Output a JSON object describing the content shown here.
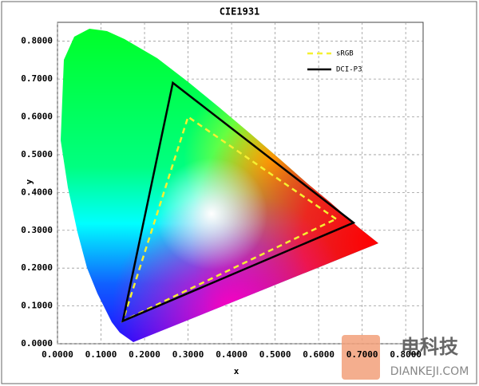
{
  "chart_data": {
    "type": "polygon",
    "title": "CIE1931",
    "x_label": "x",
    "y_label": "y",
    "xlim": [
      0,
      0.84
    ],
    "ylim": [
      0,
      0.85
    ],
    "xticks": [
      {
        "value": 0,
        "label": "0.0000"
      },
      {
        "value": 0.1,
        "label": "0.1000"
      },
      {
        "value": 0.2,
        "label": "0.2000"
      },
      {
        "value": 0.3,
        "label": "0.3000"
      },
      {
        "value": 0.4,
        "label": "0.4000"
      },
      {
        "value": 0.5,
        "label": "0.5000"
      },
      {
        "value": 0.6,
        "label": "0.6000"
      },
      {
        "value": 0.7,
        "label": "0.7000"
      },
      {
        "value": 0.8,
        "label": "0.8000"
      }
    ],
    "yticks": [
      {
        "value": 0,
        "label": "0.0000"
      },
      {
        "value": 0.1,
        "label": "0.1000"
      },
      {
        "value": 0.2,
        "label": "0.2000"
      },
      {
        "value": 0.3,
        "label": "0.3000"
      },
      {
        "value": 0.4,
        "label": "0.4000"
      },
      {
        "value": 0.5,
        "label": "0.5000"
      },
      {
        "value": 0.6,
        "label": "0.6000"
      },
      {
        "value": 0.7,
        "label": "0.7000"
      },
      {
        "value": 0.8,
        "label": "0.8000"
      }
    ],
    "grid": true,
    "legend": "upper right",
    "series": [
      {
        "name": "sRGB",
        "color": "#f5f032",
        "dashed": true,
        "x": [
          0.64,
          0.3,
          0.15
        ],
        "y": [
          0.33,
          0.6,
          0.06
        ]
      },
      {
        "name": "DCI-P3",
        "color": "#000000",
        "dashed": false,
        "x": [
          0.68,
          0.265,
          0.15
        ],
        "y": [
          0.32,
          0.69,
          0.06
        ]
      }
    ]
  },
  "watermark": {
    "brand": "电科技",
    "site": "DIANKEJI.COM"
  }
}
